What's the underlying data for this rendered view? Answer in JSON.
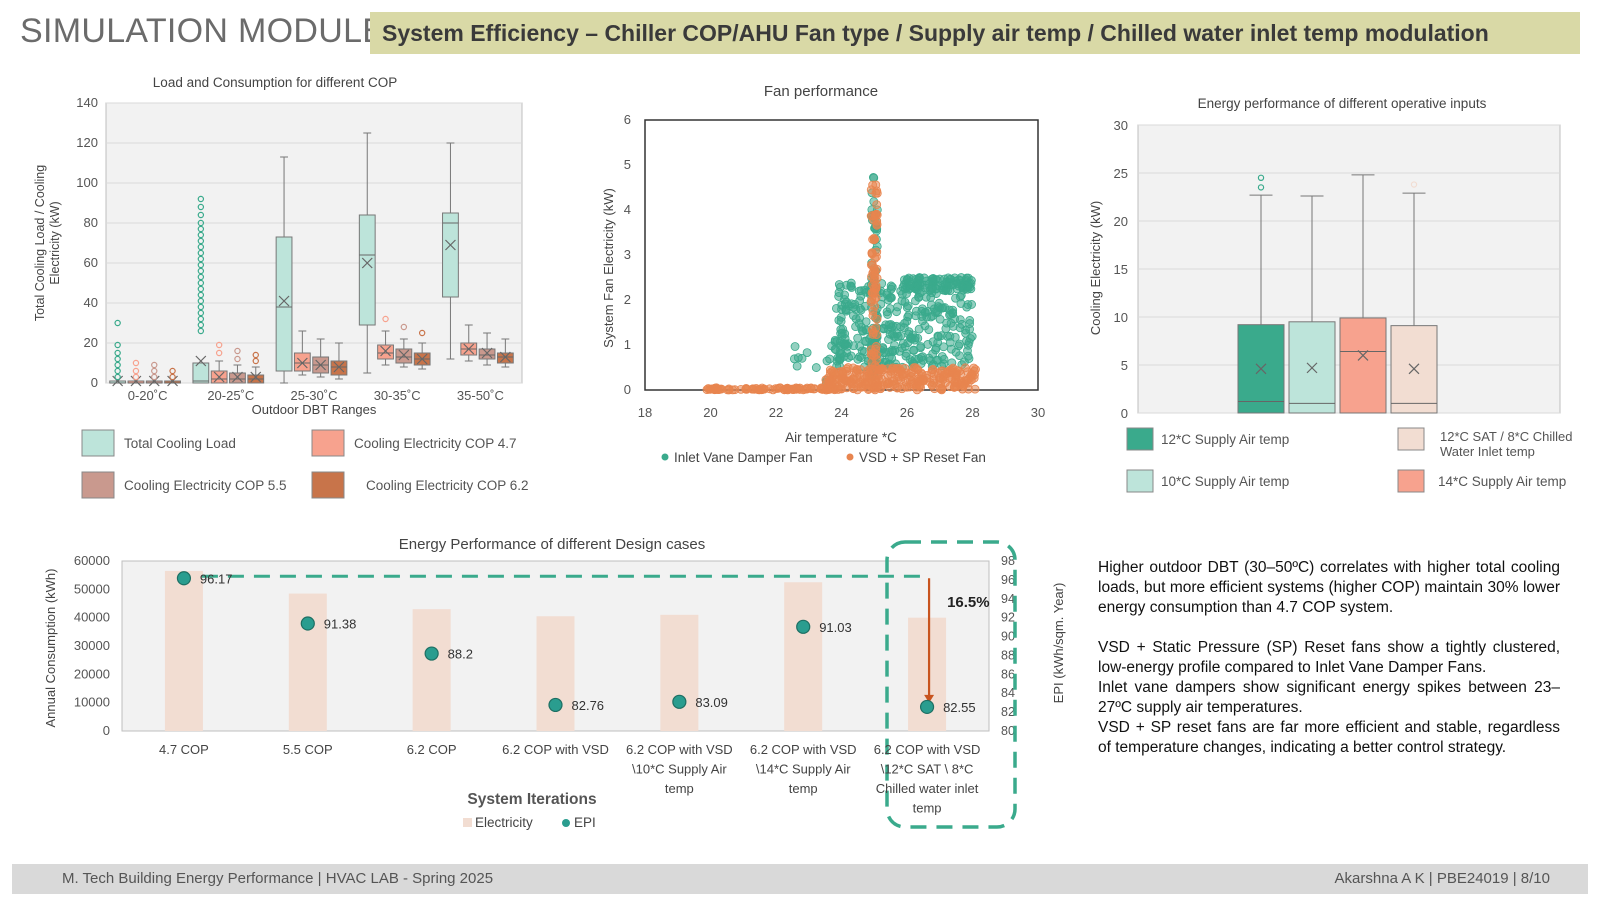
{
  "header": {
    "module_title": "SIMULATION MODULE",
    "banner_title": "System Efficiency – Chiller COP/AHU Fan type / Supply air temp / Chilled water inlet temp modulation"
  },
  "footer": {
    "left": "M. Tech Building Energy Performance | HVAC LAB  - Spring 2025",
    "right": "Akarshna A K  |  PBE24019  |  8/10"
  },
  "notes": {
    "p1": "Higher outdoor DBT (30–50ºC) correlates with higher total cooling loads, but more efficient systems (higher COP) maintain 30% lower energy consumption than 4.7 COP system.",
    "p2": "VSD + Static Pressure (SP) Reset fans show a tightly clustered, low-energy profile compared to Inlet Vane Damper Fans.",
    "p3": "Inlet vane dampers show significant energy spikes between 23–27ºC supply air temperatures.",
    "p4": "VSD + SP reset fans are far more efficient and stable, regardless of temperature changes, indicating a better control strategy."
  },
  "colors": {
    "teal": "#3aaa8c",
    "teal_light": "#bde4da",
    "salmon": "#f7a28e",
    "mauve": "#c9998e",
    "rust": "#c8744a",
    "peach": "#f2ddd2",
    "arrow": "#c8541f"
  },
  "chart_data": [
    {
      "id": "load-consumption",
      "type": "box",
      "title": "Load and Consumption for different COP",
      "xlabel": "Outdoor DBT Ranges",
      "ylabel": "Total Cooling Load / Cooling Electricity (kW)",
      "ylim": [
        0,
        140
      ],
      "yticks": [
        0,
        20,
        40,
        60,
        80,
        100,
        120,
        140
      ],
      "grid": true,
      "categories": [
        "0-20˚C",
        "20-25˚C",
        "25-30˚C",
        "30-35˚C",
        "35-50˚C"
      ],
      "series": [
        {
          "name": "Total Cooling Load",
          "color": "#bde4da",
          "boxes": [
            {
              "min": 0,
              "q1": 0,
              "median": 0,
              "q3": 1,
              "max": 1,
              "mean": 1,
              "outliers": [
                3,
                6,
                9,
                12,
                15,
                19,
                30
              ]
            },
            {
              "min": 0,
              "q1": 0,
              "median": 1,
              "q3": 10,
              "max": 10,
              "mean": 11,
              "outliers": [
                26,
                29,
                32,
                35,
                38,
                41,
                44,
                47,
                50,
                53,
                56,
                59,
                62,
                65,
                68,
                71,
                74,
                77,
                80,
                84,
                88,
                92
              ]
            },
            {
              "min": 0,
              "q1": 6,
              "median": 38,
              "q3": 73,
              "max": 113,
              "mean": 41,
              "outliers": []
            },
            {
              "min": 5,
              "q1": 29,
              "median": 64,
              "q3": 84,
              "max": 125,
              "mean": 60,
              "outliers": []
            },
            {
              "min": 12,
              "q1": 43,
              "median": 80,
              "q3": 85,
              "max": 120,
              "mean": 69,
              "outliers": []
            }
          ]
        },
        {
          "name": "Cooling Electricity COP 4.7",
          "color": "#f7a28e",
          "boxes": [
            {
              "min": 0,
              "q1": 0,
              "median": 0,
              "q3": 1,
              "max": 1,
              "mean": 1,
              "outliers": [
                3,
                6,
                10
              ]
            },
            {
              "min": 0,
              "q1": 0,
              "median": 2,
              "q3": 6,
              "max": 11,
              "mean": 3,
              "outliers": [
                15,
                19
              ]
            },
            {
              "min": 4,
              "q1": 6,
              "median": 10,
              "q3": 15,
              "max": 26,
              "mean": 10,
              "outliers": []
            },
            {
              "min": 9,
              "q1": 12,
              "median": 15,
              "q3": 19,
              "max": 26,
              "mean": 16,
              "outliers": [
                32
              ]
            },
            {
              "min": 11,
              "q1": 14,
              "median": 17,
              "q3": 20,
              "max": 29,
              "mean": 17,
              "outliers": []
            }
          ]
        },
        {
          "name": "Cooling Electricity COP 5.5",
          "color": "#c9998e",
          "boxes": [
            {
              "min": 0,
              "q1": 0,
              "median": 0,
              "q3": 1,
              "max": 1,
              "mean": 1,
              "outliers": [
                3,
                6,
                9
              ]
            },
            {
              "min": 0,
              "q1": 0,
              "median": 2,
              "q3": 5,
              "max": 9,
              "mean": 3,
              "outliers": [
                12,
                16
              ]
            },
            {
              "min": 3,
              "q1": 5,
              "median": 9,
              "q3": 13,
              "max": 22,
              "mean": 9,
              "outliers": []
            },
            {
              "min": 8,
              "q1": 10,
              "median": 13,
              "q3": 17,
              "max": 22,
              "mean": 14,
              "outliers": [
                28
              ]
            },
            {
              "min": 9,
              "q1": 12,
              "median": 14,
              "q3": 17,
              "max": 25,
              "mean": 15,
              "outliers": []
            }
          ]
        },
        {
          "name": "Cooling Electricity COP 6.2",
          "color": "#c8744a",
          "boxes": [
            {
              "min": 0,
              "q1": 0,
              "median": 0,
              "q3": 1,
              "max": 1,
              "mean": 1,
              "outliers": [
                3,
                6
              ]
            },
            {
              "min": 0,
              "q1": 0,
              "median": 2,
              "q3": 4,
              "max": 8,
              "mean": 3,
              "outliers": [
                11,
                14
              ]
            },
            {
              "min": 2,
              "q1": 4,
              "median": 8,
              "q3": 11,
              "max": 20,
              "mean": 8,
              "outliers": []
            },
            {
              "min": 7,
              "q1": 9,
              "median": 12,
              "q3": 15,
              "max": 20,
              "mean": 12,
              "outliers": [
                25
              ]
            },
            {
              "min": 8,
              "q1": 10,
              "median": 13,
              "q3": 15,
              "max": 22,
              "mean": 13,
              "outliers": []
            }
          ]
        }
      ]
    },
    {
      "id": "fan-performance",
      "type": "scatter",
      "title": "Fan performance",
      "xlabel": "Air temperature *C",
      "ylabel": "System Fan Electricity (kW)",
      "xlim": [
        18,
        30
      ],
      "ylim": [
        0,
        6
      ],
      "xticks": [
        18,
        20,
        22,
        24,
        26,
        28,
        30
      ],
      "yticks": [
        0,
        1,
        2,
        3,
        4,
        5,
        6
      ],
      "grid": false,
      "series": [
        {
          "name": "Inlet Vane Damper Fan",
          "color": "#3aaa8c",
          "clusters": [
            {
              "xmin": 23.8,
              "xmax": 28.0,
              "ymin": 0.5,
              "ymax": 2.4,
              "count": 340
            },
            {
              "xmin": 25.9,
              "xmax": 28.0,
              "ymin": 2.2,
              "ymax": 2.5,
              "count": 80
            },
            {
              "xmin": 22.5,
              "xmax": 24.0,
              "ymin": 0.0,
              "ymax": 1.0,
              "count": 15
            },
            {
              "xmin": 24.9,
              "xmax": 25.1,
              "ymin": 0.3,
              "ymax": 4.9,
              "count": 60
            }
          ]
        },
        {
          "name": "VSD + SP Reset Fan",
          "color": "#e8854f",
          "clusters": [
            {
              "xmin": 19.8,
              "xmax": 24.0,
              "ymin": 0.0,
              "ymax": 0.05,
              "count": 90
            },
            {
              "xmin": 23.5,
              "xmax": 28.1,
              "ymin": 0.0,
              "ymax": 0.5,
              "count": 260
            },
            {
              "xmin": 24.9,
              "xmax": 25.1,
              "ymin": 0.0,
              "ymax": 4.6,
              "count": 80
            }
          ]
        }
      ]
    },
    {
      "id": "operative-inputs",
      "type": "box",
      "title": "Energy performance of different operative inputs",
      "ylabel": "Cooling Electricity (kW)",
      "ylim": [
        0,
        30
      ],
      "yticks": [
        0,
        5,
        10,
        15,
        20,
        25,
        30
      ],
      "grid": true,
      "series": [
        {
          "name": "12*C Supply Air temp",
          "color": "#3aaa8c",
          "box": {
            "min": 0,
            "q1": 0,
            "median": 1.2,
            "q3": 9.2,
            "max": 22.7,
            "mean": 4.6,
            "outliers": [
              23.5,
              24.5
            ]
          }
        },
        {
          "name": "10*C Supply Air temp",
          "color": "#bde4da",
          "box": {
            "min": 0,
            "q1": 0,
            "median": 1.0,
            "q3": 9.5,
            "max": 22.6,
            "mean": 4.7,
            "outliers": []
          }
        },
        {
          "name": "14*C Supply Air temp",
          "color": "#f7a28e",
          "box": {
            "min": 0,
            "q1": 0,
            "median": 6.4,
            "q3": 9.9,
            "max": 24.8,
            "mean": 6.0,
            "outliers": []
          }
        },
        {
          "name": "12*C SAT / 8*C Chilled Water Inlet temp",
          "color": "#f2ddd2",
          "box": {
            "min": 0,
            "q1": 0,
            "median": 1.0,
            "q3": 9.1,
            "max": 22.9,
            "mean": 4.6,
            "outliers": [
              23.8
            ]
          }
        }
      ]
    },
    {
      "id": "design-cases",
      "type": "bar",
      "title": "Energy Performance of different Design cases",
      "xlabel": "System Iterations",
      "ylabel": "Annual Consumption (kWh)",
      "y2label": "EPI (kWh/sqm. Year)",
      "ylim": [
        0,
        60000
      ],
      "yticks": [
        0,
        10000,
        20000,
        30000,
        40000,
        50000,
        60000
      ],
      "y2lim": [
        80,
        98
      ],
      "y2ticks": [
        80,
        82,
        84,
        86,
        88,
        90,
        92,
        94,
        96,
        98
      ],
      "categories": [
        "4.7 COP",
        "5.5 COP",
        "6.2 COP",
        "6.2 COP with VSD",
        "6.2 COP with VSD \\10*C Supply Air temp",
        "6.2 COP with VSD \\14*C Supply Air temp",
        "6.2 COP with VSD \\12*C SAT \\ 8*C Chilled water inlet temp"
      ],
      "series": [
        {
          "name": "Electricity",
          "color": "#f2ddd2",
          "values": [
            56500,
            48500,
            43000,
            40500,
            41000,
            52500,
            40000
          ]
        },
        {
          "name": "EPI",
          "color": "#2a9d8f",
          "values": [
            96.17,
            91.38,
            88.2,
            82.76,
            83.09,
            91.03,
            82.55
          ]
        }
      ],
      "epi_labels": [
        "96.17",
        "91.38",
        "88.2",
        "82.76",
        "83.09",
        "91.03",
        "82.55"
      ],
      "annotation": "16.5%"
    }
  ]
}
